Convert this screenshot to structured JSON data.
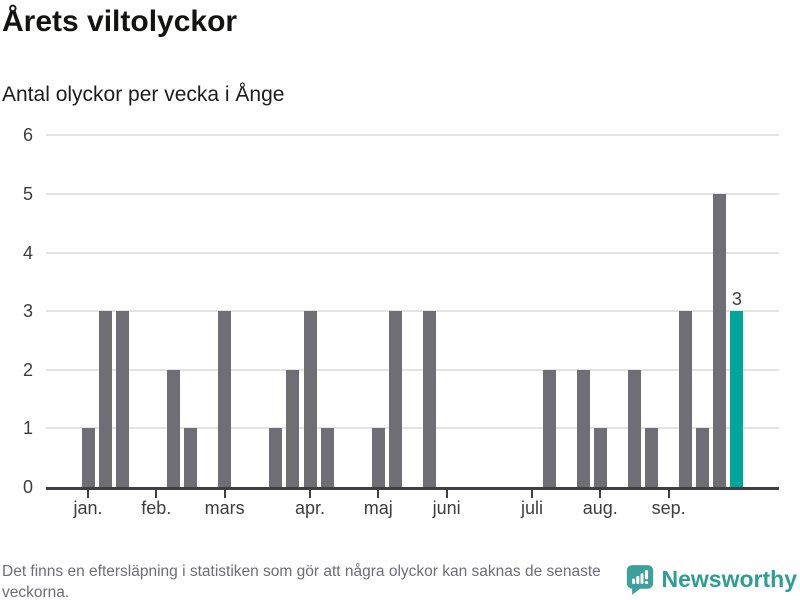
{
  "header": {
    "title": "Årets viltolyckor",
    "subtitle": "Antal olyckor per vecka i Ånge"
  },
  "chart_data": {
    "type": "bar",
    "title": "Årets viltolyckor",
    "subtitle": "Antal olyckor per vecka i Ånge",
    "x_unit": "vecka",
    "values": [
      1,
      3,
      3,
      0,
      0,
      2,
      1,
      0,
      3,
      0,
      0,
      1,
      2,
      3,
      1,
      0,
      0,
      1,
      3,
      0,
      3,
      0,
      0,
      0,
      0,
      0,
      0,
      2,
      0,
      2,
      1,
      0,
      2,
      1,
      0,
      3,
      1,
      5,
      3
    ],
    "month_ticks": [
      {
        "label": "jan.",
        "week": 0
      },
      {
        "label": "feb.",
        "week": 4
      },
      {
        "label": "mars",
        "week": 8
      },
      {
        "label": "apr.",
        "week": 13
      },
      {
        "label": "maj",
        "week": 17
      },
      {
        "label": "juni",
        "week": 21
      },
      {
        "label": "juli",
        "week": 26
      },
      {
        "label": "aug.",
        "week": 30
      },
      {
        "label": "sep.",
        "week": 34
      }
    ],
    "y_ticks": [
      0,
      1,
      2,
      3,
      4,
      5,
      6
    ],
    "ylim": [
      0,
      6
    ],
    "grid": true,
    "highlight_index": 38,
    "highlight_label": "3",
    "bar_color": "#6f6e74",
    "highlight_color": "#00a69c",
    "gridline_color": "#e3e3e3",
    "axis_color": "#3e3e43"
  },
  "footer": {
    "note": "Det finns en eftersläpning i statistiken som gör att några olyckor kan saknas de senaste veckorna.",
    "brand": "Newsworthy"
  }
}
